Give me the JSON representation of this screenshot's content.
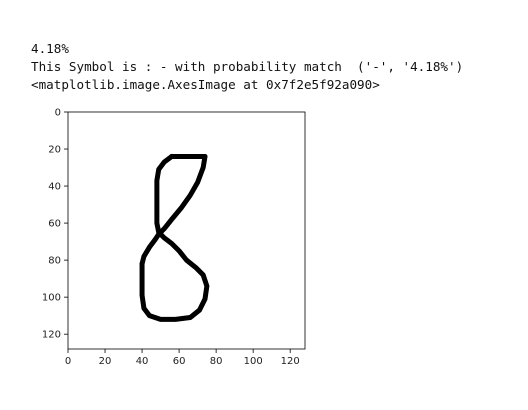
{
  "output": {
    "lines": [
      "4.18%",
      "This Symbol is : - with probability match  ('-', '4.18%')",
      "<matplotlib.image.AxesImage at 0x7f2e5f92a090>"
    ]
  },
  "chart_data": {
    "type": "image",
    "image_content": "binary handwritten digit '8' (black strokes on white)",
    "xlim": [
      0,
      128
    ],
    "ylim": [
      0,
      128
    ],
    "y_inverted": true,
    "xticks": [
      0,
      20,
      40,
      60,
      80,
      100,
      120
    ],
    "yticks": [
      0,
      20,
      40,
      60,
      80,
      100,
      120
    ],
    "xtick_labels": [
      "0",
      "20",
      "40",
      "60",
      "80",
      "100",
      "120"
    ],
    "ytick_labels": [
      "0",
      "20",
      "40",
      "60",
      "80",
      "100",
      "120"
    ],
    "grid": false,
    "strokes": [
      [
        [
          56,
          24
        ],
        [
          74,
          24
        ],
        [
          73,
          30
        ],
        [
          70,
          38
        ],
        [
          66,
          45
        ],
        [
          61,
          52
        ],
        [
          56,
          58
        ],
        [
          52,
          63
        ],
        [
          49,
          66
        ],
        [
          47,
          69
        ],
        [
          44,
          73
        ],
        [
          41,
          78
        ],
        [
          40,
          82
        ]
      ],
      [
        [
          56,
          24
        ],
        [
          52,
          27
        ],
        [
          49,
          31
        ],
        [
          48,
          37
        ],
        [
          48,
          45
        ],
        [
          48,
          54
        ],
        [
          48,
          60
        ],
        [
          49,
          65
        ],
        [
          52,
          68
        ],
        [
          56,
          71
        ],
        [
          60,
          75
        ],
        [
          64,
          80
        ],
        [
          69,
          84
        ],
        [
          73,
          88
        ],
        [
          75,
          94
        ],
        [
          74,
          101
        ],
        [
          71,
          107
        ],
        [
          66,
          111
        ],
        [
          58,
          112
        ],
        [
          50,
          112
        ],
        [
          44,
          110
        ],
        [
          41,
          106
        ],
        [
          40,
          99
        ],
        [
          40,
          90
        ],
        [
          40,
          82
        ]
      ]
    ],
    "stroke_color": "#000000"
  }
}
